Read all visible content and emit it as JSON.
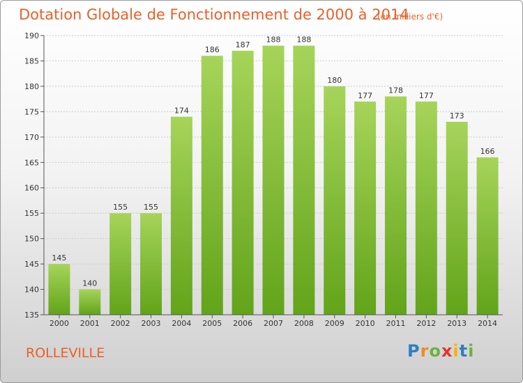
{
  "title": "Dotation Globale de Fonctionnement de 2000 à 2014",
  "unit_note": "(en milliers d'€)",
  "commune": "ROLLEVILLE",
  "logo": {
    "text": "Proxiti",
    "letters": [
      {
        "ch": "P",
        "color": "#2e7fc1"
      },
      {
        "ch": "r",
        "color": "#f08a1c"
      },
      {
        "ch": "o",
        "color": "#6cb33f"
      },
      {
        "ch": "x",
        "color": "#e2342d"
      },
      {
        "ch": "i",
        "color": "#f5b400"
      },
      {
        "ch": "t",
        "color": "#2e7fc1"
      },
      {
        "ch": "i",
        "color": "#6cb33f"
      }
    ]
  },
  "colors": {
    "accent": "#e8612a",
    "bar_top": "#a6d45a",
    "bar_bottom": "#62a41a",
    "grid": "#cccccc",
    "axis": "#555555",
    "text": "#333333"
  },
  "chart_data": {
    "type": "bar",
    "title": "Dotation Globale de Fonctionnement de 2000 à 2014",
    "categories": [
      "2000",
      "2001",
      "2002",
      "2003",
      "2004",
      "2005",
      "2006",
      "2007",
      "2008",
      "2009",
      "2010",
      "2011",
      "2012",
      "2013",
      "2014"
    ],
    "values": [
      145,
      140,
      155,
      155,
      174,
      186,
      187,
      188,
      188,
      180,
      177,
      178,
      177,
      173,
      166
    ],
    "ylim": [
      135,
      190
    ],
    "yticks": [
      135,
      140,
      145,
      150,
      155,
      160,
      165,
      170,
      175,
      180,
      185,
      190
    ],
    "xlabel": "",
    "ylabel": "",
    "grid": true,
    "data_labels": true
  }
}
